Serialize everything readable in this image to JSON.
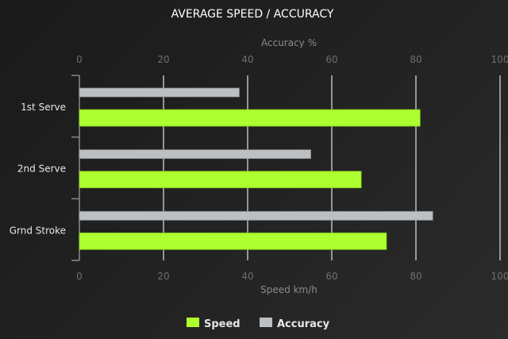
{
  "chart_data": {
    "type": "bar",
    "orientation": "horizontal",
    "title": "AVERAGE SPEED / ACCURACY",
    "categories": [
      "1st Serve",
      "2nd Serve",
      "Grnd Stroke"
    ],
    "series": [
      {
        "name": "Speed",
        "axis": "bottom",
        "color": "#adff2f",
        "values": [
          81,
          67,
          73
        ]
      },
      {
        "name": "Accuracy",
        "axis": "top",
        "color": "#bcc0c2",
        "values": [
          38,
          55,
          84
        ]
      }
    ],
    "top_axis": {
      "label": "Accuracy %",
      "range": [
        0,
        100
      ],
      "ticks": [
        "0",
        "20",
        "40",
        "60",
        "80",
        "100"
      ]
    },
    "bottom_axis": {
      "label": "Speed km/h",
      "range": [
        0,
        100
      ],
      "ticks": [
        "0",
        "20",
        "40",
        "60",
        "80",
        "100"
      ]
    },
    "grid": true,
    "legend": {
      "placement": "bottom",
      "items": [
        "Speed",
        "Accuracy"
      ]
    }
  }
}
